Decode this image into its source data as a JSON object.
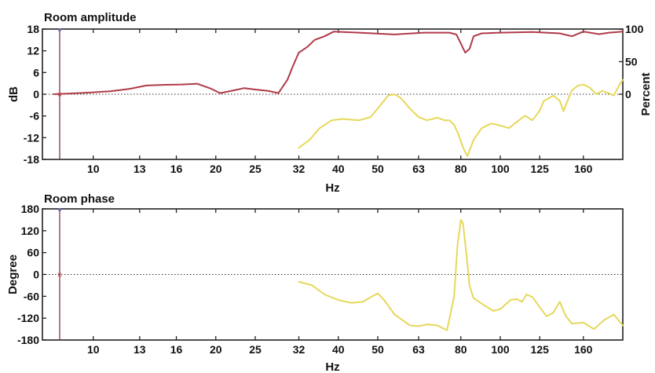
{
  "chart_data": [
    {
      "type": "line",
      "title": "Room amplitude",
      "xlabel": "Hz",
      "ylabel": "dB",
      "y2label": "Percent",
      "x_scale": "log",
      "xlim": [
        7.5,
        200
      ],
      "ylim": [
        -18,
        18
      ],
      "y2lim": [
        -100,
        100
      ],
      "x_ticks": [
        10,
        13,
        16,
        20,
        25,
        32,
        40,
        50,
        63,
        80,
        100,
        125,
        160
      ],
      "y_ticks": [
        18,
        12,
        6,
        0,
        -6,
        -12,
        -18
      ],
      "y2_ticks": [
        100,
        50,
        0
      ],
      "zero_line": "dotted",
      "colors": {
        "amplitude": "#b03a48",
        "percent": "#e6d85a",
        "axes": "#222222"
      },
      "series": [
        {
          "name": "",
          "axis": "left",
          "color": "#b03a48",
          "x": [
            8.0,
            9.5,
            11.0,
            12.3,
            13.5,
            15.0,
            16.5,
            18.0,
            19.5,
            20.5,
            22.0,
            23.5,
            25.0,
            27.0,
            28.5,
            30.0,
            31.0,
            32.0,
            33.5,
            35.0,
            37.0,
            39.0,
            45.0,
            55.0,
            65.0,
            75.0,
            78.0,
            80.0,
            82.0,
            84.0,
            86.0,
            90.0,
            100.0,
            120.0,
            140.0,
            150.0,
            160.0,
            175.0,
            185.0,
            200.0
          ],
          "y": [
            0.0,
            0.4,
            0.8,
            1.5,
            2.4,
            2.6,
            2.7,
            2.9,
            1.5,
            0.3,
            1.0,
            1.7,
            1.3,
            0.9,
            0.3,
            4.0,
            8.0,
            11.5,
            13.0,
            15.0,
            16.0,
            17.3,
            17.0,
            16.5,
            17.0,
            17.0,
            16.5,
            14.0,
            11.5,
            12.5,
            16.0,
            16.8,
            17.0,
            17.2,
            16.8,
            16.0,
            17.3,
            16.6,
            17.0,
            17.3
          ]
        },
        {
          "name": "",
          "axis": "right",
          "color": "#e6d85a",
          "x": [
            32.0,
            34.0,
            36.0,
            38.5,
            41.0,
            45.0,
            48.0,
            50.0,
            51.5,
            53.0,
            55.0,
            57.0,
            60.0,
            63.0,
            66.0,
            70.0,
            73.0,
            75.0,
            77.0,
            79.0,
            81.0,
            83.0,
            86.0,
            90.0,
            95.0,
            100.0,
            105.0,
            110.0,
            115.0,
            120.0,
            125.0,
            128.0,
            130.0,
            135.0,
            140.0,
            143.0,
            147.0,
            150.0,
            155.0,
            160.0,
            166.0,
            172.0,
            178.0,
            184.0,
            190.0,
            196.0,
            200.0
          ],
          "y": [
            -82,
            -70,
            -52,
            -40,
            -38,
            -40,
            -35,
            -22,
            -12,
            -2,
            0,
            -6,
            -22,
            -35,
            -40,
            -36,
            -40,
            -40,
            -47,
            -62,
            -82,
            -95,
            -70,
            -52,
            -45,
            -48,
            -52,
            -42,
            -33,
            -40,
            -25,
            -10,
            -8,
            -2,
            -10,
            -26,
            -7,
            6,
            13,
            15,
            10,
            0,
            5,
            2,
            -2,
            14,
            22
          ]
        }
      ]
    },
    {
      "type": "line",
      "title": "Room phase",
      "xlabel": "Hz",
      "ylabel": "Degree",
      "x_scale": "log",
      "xlim": [
        7.5,
        200
      ],
      "ylim": [
        -180,
        180
      ],
      "x_ticks": [
        10,
        13,
        16,
        20,
        25,
        32,
        40,
        50,
        63,
        80,
        100,
        125,
        160
      ],
      "y_ticks": [
        180,
        120,
        60,
        0,
        -60,
        -120,
        -180
      ],
      "zero_line": "dotted",
      "colors": {
        "phase": "#e6d85a",
        "axes": "#222222"
      },
      "series": [
        {
          "name": "",
          "axis": "left",
          "color": "#e6d85a",
          "x": [
            32.0,
            34.5,
            37.0,
            40.0,
            43.0,
            46.0,
            48.5,
            50.0,
            52.0,
            55.0,
            60.0,
            63.0,
            66.0,
            70.0,
            74.0,
            77.0,
            78.5,
            80.0,
            81.0,
            82.5,
            84.0,
            86.0,
            90.0,
            96.0,
            100.0,
            106.0,
            110.0,
            113.0,
            116.0,
            120.0,
            125.0,
            130.0,
            135.0,
            140.0,
            145.0,
            150.0,
            160.0,
            170.0,
            180.0,
            190.0,
            200.0
          ],
          "y": [
            -20,
            -30,
            -55,
            -70,
            -78,
            -75,
            -60,
            -52,
            -72,
            -110,
            -140,
            -142,
            -137,
            -140,
            -153,
            -60,
            80,
            150,
            140,
            60,
            -30,
            -65,
            -80,
            -100,
            -95,
            -70,
            -68,
            -75,
            -55,
            -62,
            -90,
            -115,
            -105,
            -75,
            -115,
            -135,
            -132,
            -150,
            -125,
            -110,
            -140
          ]
        }
      ]
    }
  ]
}
